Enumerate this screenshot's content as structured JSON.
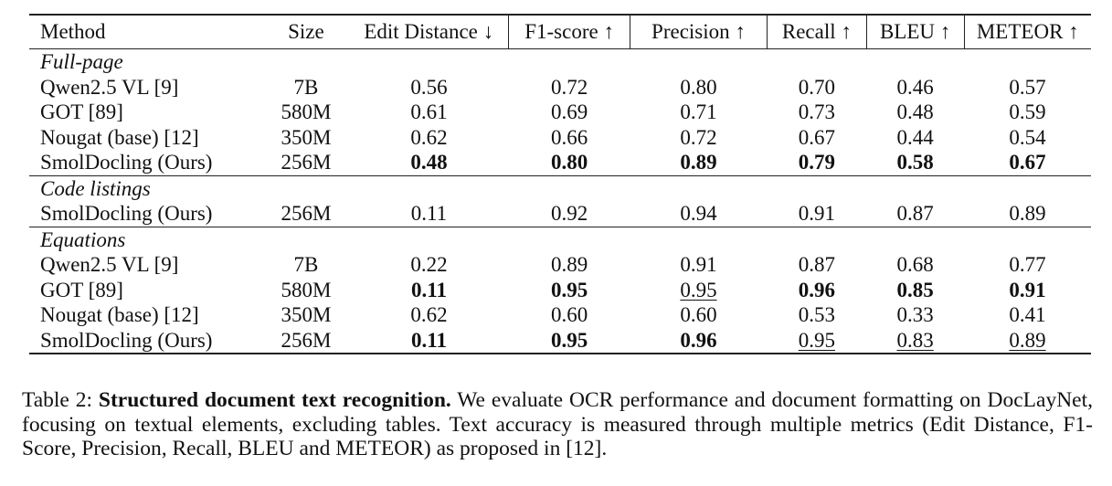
{
  "table": {
    "columns": {
      "method": "Method",
      "size": "Size",
      "metrics": [
        "Edit Distance ↓",
        "F1-score ↑",
        "Precision ↑",
        "Recall ↑",
        "BLEU ↑",
        "METEOR ↑"
      ]
    },
    "sections": [
      {
        "title": "Full-page",
        "rows": [
          {
            "method": "Qwen2.5 VL [9]",
            "size": "7B",
            "values": [
              "0.56",
              "0.72",
              "0.80",
              "0.70",
              "0.46",
              "0.57"
            ],
            "bold_method": false,
            "bold": [
              false,
              false,
              false,
              false,
              false,
              false
            ],
            "underline": [
              false,
              false,
              false,
              false,
              false,
              false
            ]
          },
          {
            "method": "GOT [89]",
            "size": "580M",
            "values": [
              "0.61",
              "0.69",
              "0.71",
              "0.73",
              "0.48",
              "0.59"
            ],
            "bold_method": false,
            "bold": [
              false,
              false,
              false,
              false,
              false,
              false
            ],
            "underline": [
              false,
              false,
              false,
              false,
              false,
              false
            ]
          },
          {
            "method": "Nougat (base) [12]",
            "size": "350M",
            "values": [
              "0.62",
              "0.66",
              "0.72",
              "0.67",
              "0.44",
              "0.54"
            ],
            "bold_method": false,
            "bold": [
              false,
              false,
              false,
              false,
              false,
              false
            ],
            "underline": [
              false,
              false,
              false,
              false,
              false,
              false
            ]
          },
          {
            "method": "SmolDocling (Ours)",
            "size": "256M",
            "values": [
              "0.48",
              "0.80",
              "0.89",
              "0.79",
              "0.58",
              "0.67"
            ],
            "bold_method": true,
            "bold": [
              true,
              true,
              true,
              true,
              true,
              true
            ],
            "underline": [
              false,
              false,
              false,
              false,
              false,
              false
            ]
          }
        ]
      },
      {
        "title": "Code listings",
        "rows": [
          {
            "method": "SmolDocling (Ours)",
            "size": "256M",
            "values": [
              "0.11",
              "0.92",
              "0.94",
              "0.91",
              "0.87",
              "0.89"
            ],
            "bold_method": true,
            "bold": [
              false,
              false,
              false,
              false,
              false,
              false
            ],
            "underline": [
              false,
              false,
              false,
              false,
              false,
              false
            ]
          }
        ]
      },
      {
        "title": "Equations",
        "rows": [
          {
            "method": "Qwen2.5 VL [9]",
            "size": "7B",
            "values": [
              "0.22",
              "0.89",
              "0.91",
              "0.87",
              "0.68",
              "0.77"
            ],
            "bold_method": false,
            "bold": [
              false,
              false,
              false,
              false,
              false,
              false
            ],
            "underline": [
              false,
              false,
              false,
              false,
              false,
              false
            ]
          },
          {
            "method": "GOT [89]",
            "size": "580M",
            "values": [
              "0.11",
              "0.95",
              "0.95",
              "0.96",
              "0.85",
              "0.91"
            ],
            "bold_method": false,
            "bold": [
              true,
              true,
              false,
              true,
              true,
              true
            ],
            "underline": [
              false,
              false,
              true,
              false,
              false,
              false
            ]
          },
          {
            "method": "Nougat (base) [12]",
            "size": "350M",
            "values": [
              "0.62",
              "0.60",
              "0.60",
              "0.53",
              "0.33",
              "0.41"
            ],
            "bold_method": false,
            "bold": [
              false,
              false,
              false,
              false,
              false,
              false
            ],
            "underline": [
              false,
              false,
              false,
              false,
              false,
              false
            ]
          },
          {
            "method": "SmolDocling (Ours)",
            "size": "256M",
            "values": [
              "0.11",
              "0.95",
              "0.96",
              "0.95",
              "0.83",
              "0.89"
            ],
            "bold_method": true,
            "bold": [
              true,
              true,
              true,
              false,
              false,
              false
            ],
            "underline": [
              false,
              false,
              false,
              true,
              true,
              true
            ]
          }
        ]
      }
    ]
  },
  "caption": {
    "label": "Table 2:",
    "lead": "Structured document text recognition.",
    "body": "We evaluate OCR performance and document formatting on DocLayNet, focusing on textual elements, excluding tables. Text accuracy is measured through multiple metrics (Edit Distance, F1-Score, Precision, Recall, BLEU and METEOR) as proposed in [12]."
  }
}
